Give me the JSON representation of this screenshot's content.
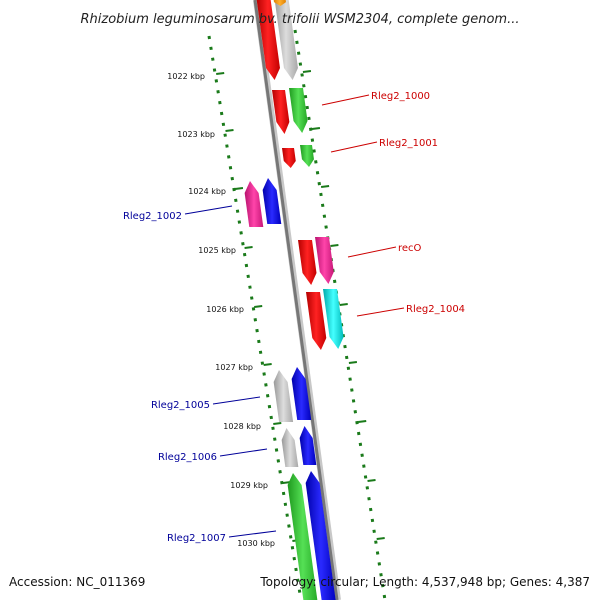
{
  "title": "Rhizobium leguminosarum bv. trifolii WSM2304, complete genom...",
  "accession": "Accession: NC_011369",
  "summary": "Topology: circular; Length: 4,537,948 bp; Genes: 4,387",
  "colors": {
    "backbone": "#777777",
    "tick": "#1a7a1a",
    "label_forward": "#cc0000",
    "label_reverse": "#000099",
    "red": "#ee1111",
    "gray": "#bbbbbb",
    "green": "#33cc33",
    "magenta": "#ee2299",
    "blue": "#1111ee",
    "cyan": "#11dddd",
    "orange": "#ff9900"
  },
  "ticks": [
    {
      "label": "1022 kbp",
      "position_kbp": 1022
    },
    {
      "label": "1023 kbp",
      "position_kbp": 1023
    },
    {
      "label": "1024 kbp",
      "position_kbp": 1024
    },
    {
      "label": "1025 kbp",
      "position_kbp": 1025
    },
    {
      "label": "1026 kbp",
      "position_kbp": 1026
    },
    {
      "label": "1027 kbp",
      "position_kbp": 1027
    },
    {
      "label": "1028 kbp",
      "position_kbp": 1028
    },
    {
      "label": "1029 kbp",
      "position_kbp": 1029
    },
    {
      "label": "1030 kbp",
      "position_kbp": 1030
    }
  ],
  "gene_labels": [
    {
      "text": "Rleg2_1000",
      "strand": "forward"
    },
    {
      "text": "Rleg2_1001",
      "strand": "forward"
    },
    {
      "text": "Rleg2_1002",
      "strand": "reverse"
    },
    {
      "text": "recO",
      "strand": "forward"
    },
    {
      "text": "Rleg2_1004",
      "strand": "forward"
    },
    {
      "text": "Rleg2_1005",
      "strand": "reverse"
    },
    {
      "text": "Rleg2_1006",
      "strand": "reverse"
    },
    {
      "text": "Rleg2_1007",
      "strand": "reverse"
    }
  ]
}
